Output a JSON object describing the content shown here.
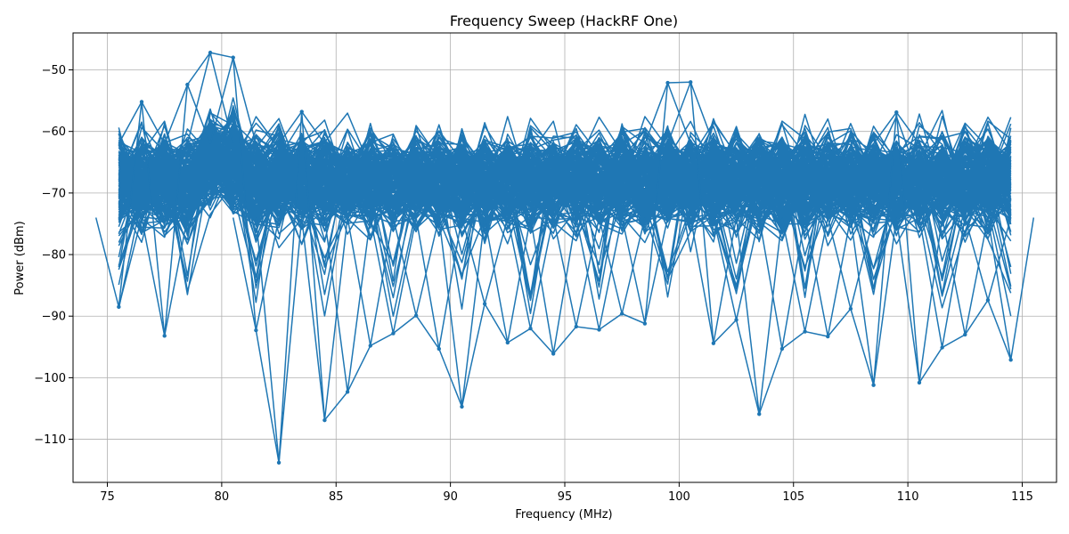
{
  "chart_data": {
    "type": "line",
    "title": "Frequency Sweep (HackRF One)",
    "xlabel": "Frequency (MHz)",
    "ylabel": "Power (dBm)",
    "xlim": [
      73.5,
      116.5
    ],
    "ylim": [
      -117,
      -44
    ],
    "xticks": [
      75,
      80,
      85,
      90,
      95,
      100,
      105,
      110,
      115
    ],
    "yticks": [
      -50,
      -60,
      -70,
      -80,
      -90,
      -100,
      -110
    ],
    "grid": true,
    "legend": "none",
    "color": "#1f77b4",
    "series": [
      {
        "x": [
          75.5,
          76.5,
          77.5,
          78.5,
          79.5,
          80.5,
          81.5,
          82.5,
          83.5,
          84.5,
          85.5,
          86.5,
          87.5,
          88.5,
          89.5,
          90.5,
          91.5,
          92.5,
          93.5,
          94.5,
          95.5,
          96.5,
          97.5,
          98.5,
          99.5,
          100.5,
          101.5,
          102.5,
          103.5,
          104.5,
          105.5,
          106.5,
          107.5,
          108.5,
          109.5,
          110.5,
          111.5,
          112.5,
          113.5,
          114.5
        ],
        "y": [
          -88.5,
          -55.2,
          -93.2,
          -52.4,
          -47.2,
          -48.0,
          -92.3,
          -113.8,
          -56.8,
          -106.9,
          -102.3,
          -94.8,
          -92.8,
          -89.9,
          -95.3,
          -104.7,
          -88.0,
          -94.3,
          -92.0,
          -96.1,
          -91.7,
          -92.2,
          -89.6,
          -91.2,
          -52.1,
          -52.0,
          -94.4,
          -90.6,
          -105.9,
          -95.3,
          -92.5,
          -93.3,
          -88.8,
          -101.2,
          -56.9,
          -100.8,
          -95.1,
          -93.0,
          -87.4,
          -97.1
        ]
      }
    ]
  }
}
